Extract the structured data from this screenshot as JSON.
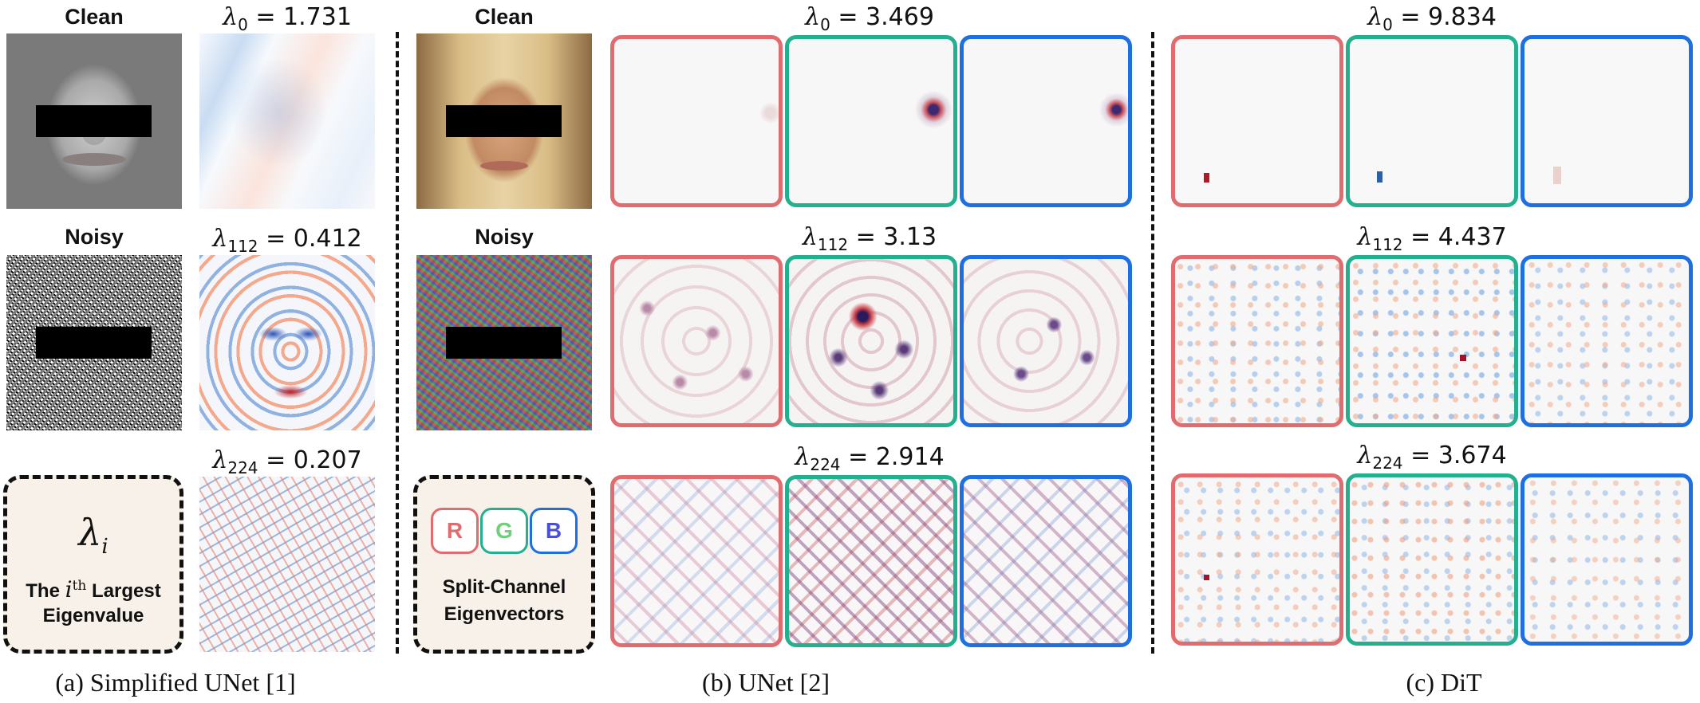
{
  "panel_a": {
    "clean_label": "Clean",
    "noisy_label": "Noisy",
    "eig_0_sub": "0",
    "eig_0_val": "= 1.731",
    "eig_112_sub": "112",
    "eig_112_val": "= 0.412",
    "eig_224_sub": "224",
    "eig_224_val": "= 0.207",
    "legend_symbol": "λ",
    "legend_symbol_sub": "i",
    "legend_line1_pre": "The",
    "legend_line1_i": "i",
    "legend_line1_sup": "th",
    "legend_line1_post": "Largest",
    "legend_line2": "Eigenvalue",
    "caption": "(a) Simplified UNet [1]"
  },
  "panel_b": {
    "clean_label": "Clean",
    "noisy_label": "Noisy",
    "eig_0_sub": "0",
    "eig_0_val": "= 3.469",
    "eig_112_sub": "112",
    "eig_112_val": "= 3.13",
    "eig_224_sub": "224",
    "eig_224_val": "= 2.914",
    "chip_r": "R",
    "chip_g": "G",
    "chip_b": "B",
    "legend_line1": "Split-Channel",
    "legend_line2": "Eigenvectors",
    "caption": "(b) UNet [2]"
  },
  "panel_c": {
    "eig_0_sub": "0",
    "eig_0_val": "= 9.834",
    "eig_112_sub": "112",
    "eig_112_val": "= 4.437",
    "eig_224_sub": "224",
    "eig_224_val": "= 3.674",
    "caption": "(c) DiT"
  },
  "colors": {
    "red_channel": "#e06c70",
    "green_channel": "#23b08e",
    "blue_channel": "#1e6fe0",
    "legend_fill": "#f7f1ea"
  }
}
